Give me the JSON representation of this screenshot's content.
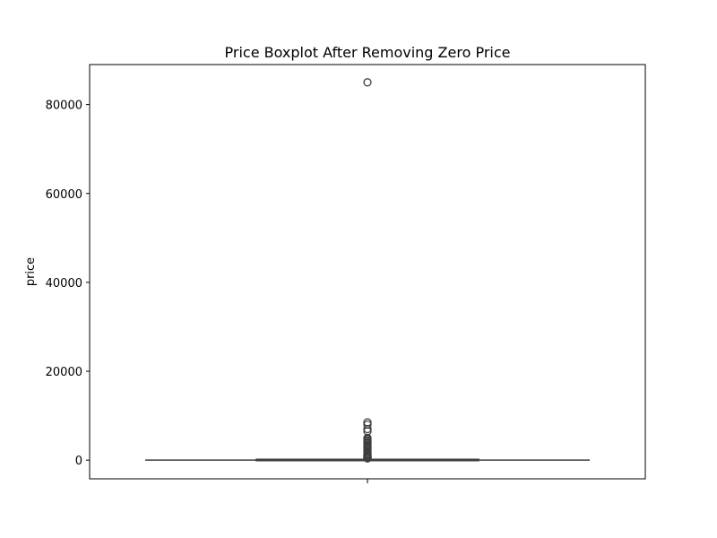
{
  "chart_data": {
    "type": "box",
    "title": "Price Boxplot After Removing Zero Price",
    "xlabel": "",
    "ylabel": "price",
    "ylim": [
      -4200,
      89000
    ],
    "yticks": [
      0,
      20000,
      40000,
      60000,
      80000
    ],
    "ytick_labels": [
      "0",
      "20000",
      "40000",
      "60000",
      "80000"
    ],
    "grid": false,
    "legend": "none",
    "box": {
      "whisker_low": 0,
      "q1": 70,
      "median": 120,
      "q3": 190,
      "whisker_high": 370
    },
    "outliers": [
      85000,
      8500,
      8000,
      7000,
      6500,
      5000,
      4800,
      4500,
      4300,
      4000,
      3800,
      3500,
      3200,
      3000,
      2800,
      2500,
      2300,
      2000,
      1800,
      1500,
      1300,
      1100,
      1000,
      900,
      800,
      700,
      600,
      500,
      450,
      400
    ],
    "colors": {
      "box_fill": "#1f77b4",
      "line": "#3f3f3f",
      "outlier_edge": "#3f3f3f"
    }
  }
}
